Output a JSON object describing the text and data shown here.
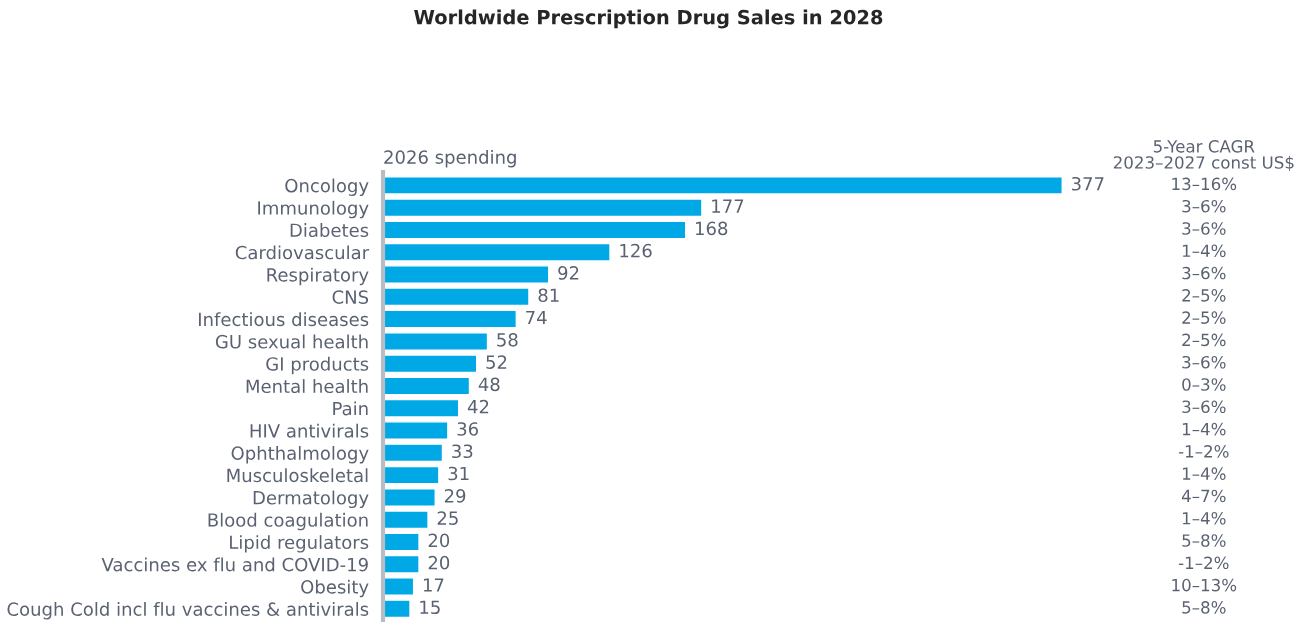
{
  "chart_data": {
    "type": "bar",
    "orientation": "horizontal",
    "title": "Worldwide Prescription Drug Sales in 2028",
    "xlabel": "2026 spending",
    "categories": [
      "Oncology",
      "Immunology",
      "Diabetes",
      "Cardiovascular",
      "Respiratory",
      "CNS",
      "Infectious diseases",
      "GU sexual health",
      "GI products",
      "Mental health",
      "Pain",
      "HIV antivirals",
      "Ophthalmology",
      "Musculoskeletal",
      "Dermatology",
      "Blood coagulation",
      "Lipid regulators",
      "Vaccines ex flu and COVID-19",
      "Obesity",
      "Cough Cold incl flu vaccines & antivirals"
    ],
    "values": [
      377,
      177,
      168,
      126,
      92,
      81,
      74,
      58,
      52,
      48,
      42,
      36,
      33,
      31,
      29,
      25,
      20,
      20,
      17,
      15
    ],
    "color": "#00a9e6",
    "data_labels": true,
    "grid": false,
    "legend": false,
    "annotations": [
      "5-Year CAGR\n2023–2027 const US$",
      "13–16%",
      "3–6%",
      "3–6%",
      "1–4%",
      "3–6%",
      "2–5%",
      "2–5%",
      "2–5%",
      "3–6%",
      "0–3%",
      "3–6%",
      "1–4%",
      "-1–2%",
      "1–4%",
      "4–7%",
      "1–4%",
      "5–8%",
      "-1–2%",
      "10–13%",
      "5–8%"
    ]
  }
}
